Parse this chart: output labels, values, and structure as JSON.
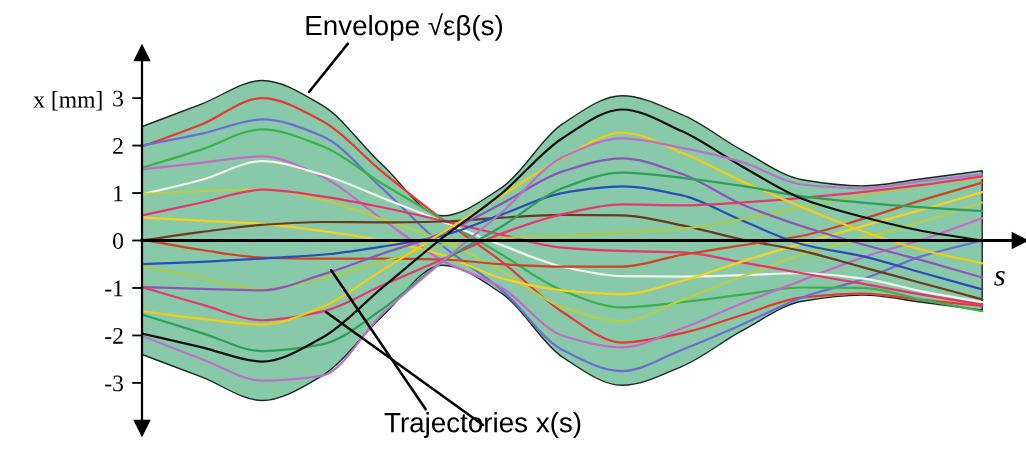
{
  "chart_data": {
    "type": "line",
    "categories": [
      null,
      null,
      null,
      null,
      null,
      null,
      null,
      null,
      null,
      null,
      null,
      null,
      null,
      null,
      null
    ],
    "xlabel": "s",
    "ylabel": "x [mm]",
    "ylim": [
      -3.95,
      3.95
    ],
    "yticks": [
      -3,
      -2,
      -1,
      0,
      1,
      2,
      3
    ],
    "tick_labels": "y",
    "marker": "none",
    "line_style": "solid",
    "annotations": [
      "Envelope √εβ(s)",
      "Trajectories x(s)"
    ],
    "series": [
      {
        "type": "area",
        "color": "#88c9aa",
        "values": [
          2.4,
          2.88,
          3.37,
          2.85,
          1.6,
          0.52,
          1.12,
          2.45,
          3.05,
          2.65,
          1.9,
          1.28,
          1.15,
          1.3,
          1.47
        ]
      },
      {
        "type": "area",
        "color": "#88c9aa",
        "values": [
          -2.4,
          -2.88,
          -3.37,
          -2.85,
          -1.6,
          -0.52,
          -1.12,
          -2.45,
          -3.05,
          -2.65,
          -1.9,
          -1.28,
          -1.15,
          -1.3,
          -1.47
        ]
      },
      {
        "color": "#e53935",
        "values": [
          1.98,
          2.45,
          3.0,
          2.52,
          1.45,
          0.45,
          -0.45,
          -1.5,
          -2.15,
          -1.95,
          -1.57,
          -1.2,
          -1.12,
          -1.25,
          -1.38
        ]
      },
      {
        "color": "#6a6fcf",
        "values": [
          2.0,
          2.25,
          2.55,
          2.2,
          1.1,
          -0.1,
          -1.05,
          -2.3,
          -2.75,
          -2.3,
          -1.77,
          -1.2,
          -0.82,
          -0.33,
          0.0
        ]
      },
      {
        "color": "#3cb04a",
        "values": [
          1.53,
          1.92,
          2.34,
          1.99,
          1.2,
          0.45,
          -0.3,
          -1.05,
          -1.41,
          -1.3,
          -1.14,
          -0.99,
          -1.0,
          -1.25,
          -1.49
        ]
      },
      {
        "color": "#c46cc4",
        "values": [
          1.5,
          1.64,
          1.77,
          1.35,
          0.45,
          -0.42,
          -1.0,
          -2.0,
          -2.25,
          -1.85,
          -1.32,
          -0.84,
          -0.36,
          0.02,
          0.47
        ]
      },
      {
        "color": "#f2f5ea",
        "values": [
          0.97,
          1.28,
          1.67,
          1.39,
          0.9,
          0.4,
          -0.1,
          -0.55,
          -0.75,
          -0.76,
          -0.73,
          -0.69,
          -0.8,
          -1.07,
          -1.3
        ]
      },
      {
        "color": "#b5cf45",
        "values": [
          0.98,
          1.04,
          1.08,
          0.86,
          0.45,
          0.0,
          -0.65,
          -1.4,
          -1.7,
          -1.25,
          -0.76,
          -0.3,
          0.05,
          0.4,
          0.8
        ]
      },
      {
        "color": "#e8336d",
        "values": [
          0.53,
          0.8,
          1.07,
          0.93,
          0.7,
          0.42,
          0.12,
          -0.15,
          -0.22,
          -0.25,
          -0.46,
          -0.69,
          -0.91,
          -1.14,
          -1.35
        ]
      },
      {
        "color": "#f7d21c",
        "values": [
          0.48,
          0.42,
          0.35,
          0.2,
          0.0,
          -0.3,
          -0.8,
          -1.05,
          -1.13,
          -0.85,
          -0.44,
          -0.06,
          0.3,
          0.65,
          1.02
        ]
      },
      {
        "color": "#6b3a1e",
        "values": [
          0.0,
          0.18,
          0.33,
          0.39,
          0.38,
          0.4,
          0.48,
          0.54,
          0.53,
          0.32,
          0.02,
          -0.22,
          -0.56,
          -0.9,
          -1.24
        ]
      },
      {
        "color": "#cc4422",
        "values": [
          0.02,
          -0.2,
          -0.36,
          -0.38,
          -0.38,
          -0.4,
          -0.5,
          -0.55,
          -0.55,
          -0.3,
          -0.1,
          0.1,
          0.45,
          0.85,
          1.22
        ]
      },
      {
        "color": "#2a4db8",
        "values": [
          -0.5,
          -0.45,
          -0.38,
          -0.3,
          -0.13,
          0.1,
          0.55,
          1.0,
          1.14,
          0.95,
          0.42,
          -0.08,
          -0.33,
          -0.68,
          -1.03
        ]
      },
      {
        "color": "#a9cc4a",
        "values": [
          -0.54,
          -0.78,
          -1.03,
          -0.8,
          -0.45,
          -0.1,
          0.05,
          0.1,
          0.17,
          0.25,
          0.45,
          0.7,
          0.95,
          1.15,
          1.32
        ]
      },
      {
        "color": "#8d55b8",
        "values": [
          -0.98,
          -1.02,
          -1.05,
          -0.72,
          -0.28,
          0.15,
          0.78,
          1.45,
          1.73,
          1.4,
          0.76,
          0.3,
          -0.08,
          -0.42,
          -0.78
        ]
      },
      {
        "color": "#e23a6e",
        "values": [
          -0.98,
          -1.35,
          -1.68,
          -1.5,
          -0.95,
          -0.4,
          0.15,
          0.55,
          0.76,
          0.74,
          0.8,
          0.9,
          1.02,
          1.17,
          1.35
        ]
      },
      {
        "color": "#f5cc10",
        "values": [
          -1.49,
          -1.65,
          -1.77,
          -1.4,
          -0.63,
          0.16,
          0.95,
          1.73,
          2.27,
          1.85,
          1.25,
          0.7,
          0.2,
          -0.2,
          -0.48
        ]
      },
      {
        "color": "#2e9e5a",
        "values": [
          -1.56,
          -1.95,
          -2.33,
          -2.19,
          -1.45,
          -0.45,
          0.3,
          1.1,
          1.43,
          1.32,
          1.15,
          0.93,
          0.8,
          0.7,
          0.62
        ]
      },
      {
        "color": "#111111",
        "values": [
          -1.96,
          -2.25,
          -2.55,
          -2.05,
          -1.0,
          0.05,
          1.0,
          2.15,
          2.76,
          2.3,
          1.56,
          0.88,
          0.5,
          0.2,
          0.0
        ]
      },
      {
        "color": "#b873c8",
        "values": [
          -2.01,
          -2.5,
          -2.95,
          -2.85,
          -1.55,
          -0.45,
          0.6,
          1.75,
          2.15,
          1.95,
          1.65,
          1.18,
          1.1,
          1.25,
          1.39
        ]
      }
    ]
  }
}
